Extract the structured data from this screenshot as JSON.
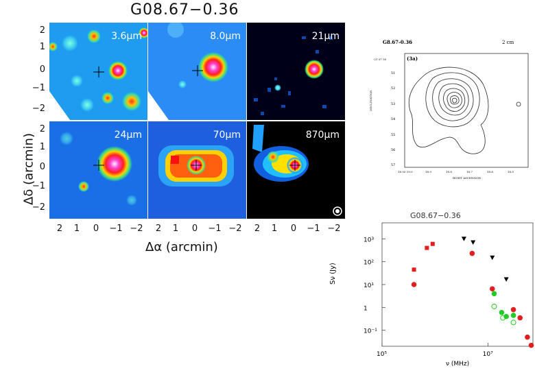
{
  "figure": {
    "title": "G08.67−0.36",
    "ylabel": "Δδ (arcmin)",
    "xlabel": "Δα (arcmin)",
    "y_ticks": [
      "2",
      "1",
      "0",
      "−1",
      "−2"
    ],
    "x_ticks": [
      "2",
      "1",
      "0",
      "−1",
      "−2"
    ],
    "panels": [
      {
        "label": "3.6μm",
        "bg": "#1f9cf0"
      },
      {
        "label": "8.0μm",
        "bg": "#2a8cf4"
      },
      {
        "label": "21μm",
        "bg": "#000018"
      },
      {
        "label": "24μm",
        "bg": "#1a6fe6"
      },
      {
        "label": "70μm",
        "bg": "#1e5fe0"
      },
      {
        "label": "870μm",
        "bg": "#000000"
      }
    ]
  },
  "contour": {
    "title": "G8.67-0.36",
    "band": "2 cm",
    "tag": "(3a)",
    "y_axis_label": "DECLINATION",
    "x_axis_label": "RIGHT ASCENSION",
    "dec_head": "-21 37 50",
    "y_ticks": [
      "51",
      "52",
      "53",
      "54",
      "55",
      "56",
      "57"
    ],
    "x_ticks": [
      "18 03 19.0",
      "18.9",
      "18.8",
      "18.7",
      "18.6",
      "18.5"
    ]
  },
  "chart_data": {
    "type": "scatter",
    "title": "G08.67−0.36",
    "xlabel": "ν (MHz)",
    "ylabel": "Sν (Jy)",
    "x_scale": "log",
    "y_scale": "log",
    "xlim": [
      100000,
      70000000
    ],
    "ylim": [
      0.02,
      5000
    ],
    "x_tick_labels": [
      "10⁵",
      "10⁷"
    ],
    "y_tick_labels": [
      "10³",
      "10²",
      "10¹",
      "1",
      "10⁻¹"
    ],
    "series": [
      {
        "marker": "square",
        "color": "#e02020",
        "points": [
          [
            400000,
            45
          ],
          [
            700000,
            400
          ],
          [
            900000,
            600
          ]
        ]
      },
      {
        "marker": "circle",
        "color": "#e02020",
        "points": [
          [
            400000,
            10
          ],
          [
            5000000,
            230
          ],
          [
            12000000,
            6.5
          ],
          [
            30000000,
            0.8
          ],
          [
            40000000,
            0.35
          ],
          [
            55000000,
            0.05
          ],
          [
            65000000,
            0.022
          ]
        ]
      },
      {
        "marker": "triangle-down",
        "color": "#000000",
        "points": [
          [
            3500000,
            1000
          ],
          [
            5200000,
            700
          ],
          [
            12000000,
            150
          ],
          [
            22000000,
            17
          ]
        ]
      },
      {
        "marker": "circle",
        "color": "#22cc22",
        "points": [
          [
            13000000,
            4
          ],
          [
            18000000,
            0.6
          ],
          [
            22000000,
            0.4
          ],
          [
            30000000,
            0.45
          ]
        ]
      },
      {
        "marker": "open-circle",
        "color": "#22cc22",
        "points": [
          [
            13000000,
            1.1
          ],
          [
            19000000,
            0.35
          ],
          [
            30000000,
            0.22
          ]
        ]
      }
    ]
  }
}
